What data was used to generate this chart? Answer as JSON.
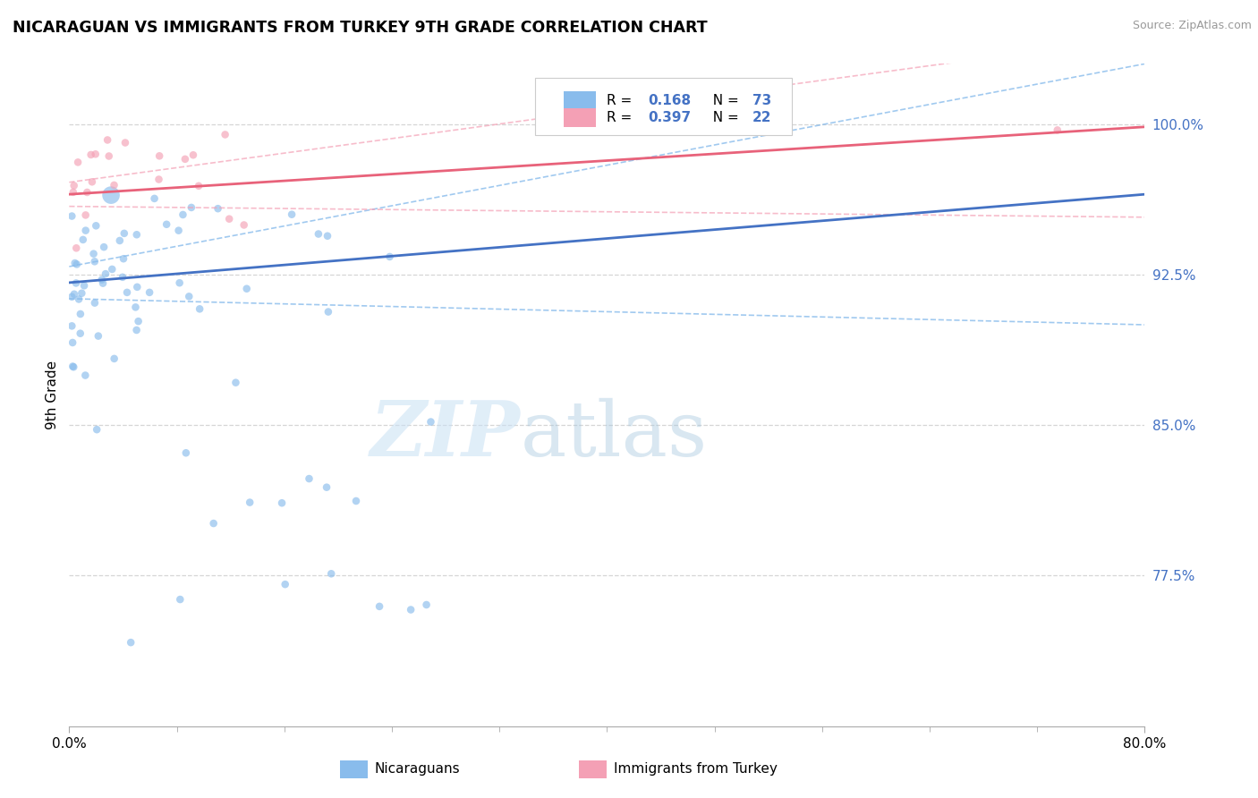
{
  "title": "NICARAGUAN VS IMMIGRANTS FROM TURKEY 9TH GRADE CORRELATION CHART",
  "source": "Source: ZipAtlas.com",
  "ylabel": "9th Grade",
  "xlim": [
    0.0,
    0.8
  ],
  "ylim": [
    0.7,
    1.03
  ],
  "ytick_vals": [
    1.0,
    0.925,
    0.85,
    0.775
  ],
  "ytick_labels": [
    "100.0%",
    "92.5%",
    "85.0%",
    "77.5%"
  ],
  "R_nicaraguan": 0.168,
  "N_nicaraguan": 73,
  "R_turkey": 0.397,
  "N_turkey": 22,
  "color_nicaraguan": "#89BCEC",
  "color_turkey": "#F4A0B5",
  "color_line_nicaraguan": "#4472C4",
  "color_line_turkey": "#E8627A",
  "color_dash_nicaraguan": "#89BCEC",
  "color_dash_turkey": "#F4A0B5",
  "legend_label_nicaraguan": "Nicaraguans",
  "legend_label_turkey": "Immigrants from Turkey",
  "nic_intercept": 0.921,
  "nic_slope": 0.055,
  "turk_intercept": 0.965,
  "turk_slope": 0.042,
  "background_color": "#FFFFFF",
  "grid_color": "#CCCCCC",
  "ytick_color": "#4472C4"
}
